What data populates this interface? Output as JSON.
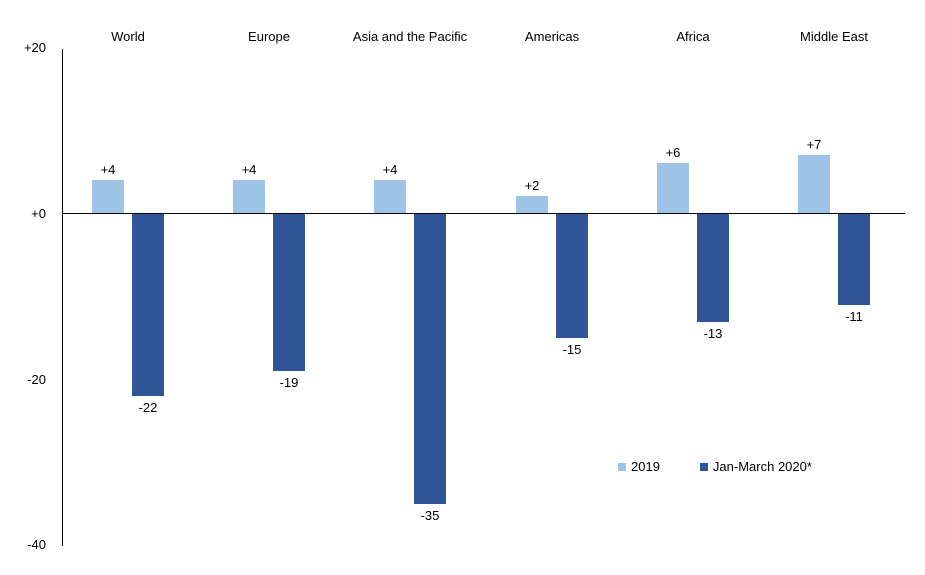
{
  "chart_data": {
    "type": "bar",
    "categories": [
      "World",
      "Europe",
      "Asia and the Pacific",
      "Americas",
      "Africa",
      "Middle East"
    ],
    "series": [
      {
        "name": "2019",
        "color": "#9DC3E6",
        "values": [
          4,
          4,
          4,
          2,
          6,
          7
        ],
        "labels": [
          "+4",
          "+4",
          "+4",
          "+2",
          "+6",
          "+7"
        ]
      },
      {
        "name": "Jan-March 2020*",
        "color": "#2F5597",
        "values": [
          -22,
          -19,
          -35,
          -15,
          -13,
          -11
        ],
        "labels": [
          "-22",
          "-19",
          "-35",
          "-15",
          "-13",
          "-11"
        ]
      }
    ],
    "title": "",
    "xlabel": "",
    "ylabel": "",
    "ylim": [
      -40,
      20
    ],
    "yticks": [
      {
        "value": 20,
        "label": "+20"
      },
      {
        "value": 0,
        "label": "+0"
      },
      {
        "value": -20,
        "label": "-20"
      },
      {
        "value": -40,
        "label": "-40"
      }
    ],
    "grid": false,
    "legend_position": "inside-bottom-right",
    "legend": [
      "2019",
      "Jan-March 2020*"
    ],
    "axis_color": "#000000",
    "text_color": "#000000"
  }
}
